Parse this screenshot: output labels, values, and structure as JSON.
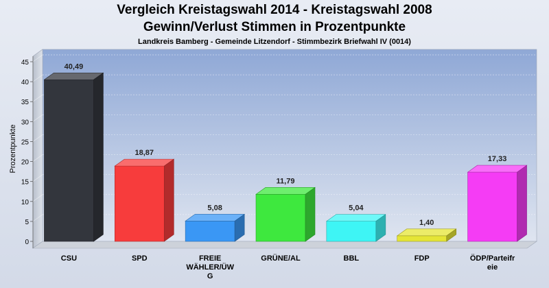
{
  "chart_data": {
    "type": "bar",
    "title": "Vergleich Kreistagswahl 2014 - Kreistagswahl 2008",
    "subtitle": "Gewinn/Verlust Stimmen in Prozentpunkte",
    "subsubtitle": "Landkreis Bamberg - Gemeinde Litzendorf - Stimmbezirk Briefwahl IV (0014)",
    "ylabel": "Prozentpunkte",
    "ylim": [
      0,
      45
    ],
    "yticks": [
      "0",
      "5",
      "10",
      "15",
      "20",
      "25",
      "30",
      "35",
      "40",
      "45"
    ],
    "grid": true,
    "categories": [
      "CSU",
      "SPD",
      "FREIE WÄHLER/ÜWG",
      "GRÜNE/AL",
      "BBL",
      "FDP",
      "ÖDP/Parteifreie"
    ],
    "category_lines": [
      [
        "CSU"
      ],
      [
        "SPD"
      ],
      [
        "FREIE",
        "WÄHLER/ÜW",
        "G"
      ],
      [
        "GRÜNE/AL"
      ],
      [
        "BBL"
      ],
      [
        "FDP"
      ],
      [
        "ÖDP/Parteifr",
        "eie"
      ]
    ],
    "values": [
      40.49,
      18.87,
      5.08,
      11.79,
      5.04,
      1.4,
      17.33
    ],
    "value_labels": [
      "40,49",
      "18,87",
      "5,08",
      "11,79",
      "5,04",
      "1,40",
      "17,33"
    ],
    "colors": [
      "#33363d",
      "#f73c3c",
      "#3a97f5",
      "#3ee83e",
      "#3ef5f5",
      "#e5e536",
      "#f53cf5"
    ]
  }
}
